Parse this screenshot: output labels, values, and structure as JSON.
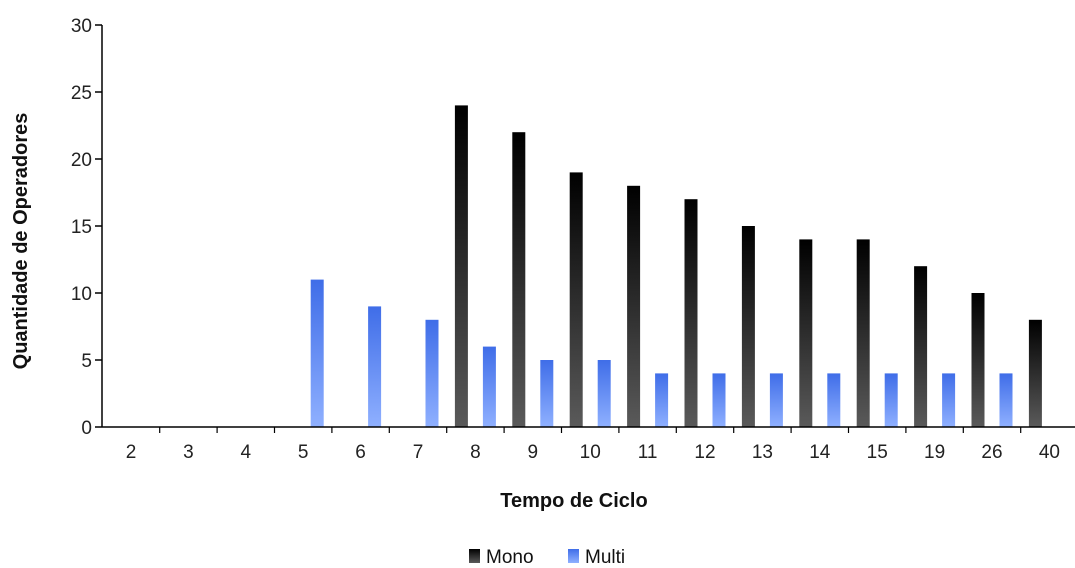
{
  "chart_data": {
    "type": "bar",
    "title": "",
    "xlabel": "Tempo de Ciclo",
    "ylabel": "Quantidade de Operadores",
    "categories": [
      "2",
      "3",
      "4",
      "5",
      "6",
      "7",
      "8",
      "9",
      "10",
      "11",
      "12",
      "13",
      "14",
      "15",
      "19",
      "26",
      "40"
    ],
    "ylim": [
      0,
      30
    ],
    "yticks": [
      "0",
      "5",
      "10",
      "15",
      "20",
      "25",
      "30"
    ],
    "grid": false,
    "legend_position": "bottom",
    "series": [
      {
        "name": "Mono",
        "color": "#111111",
        "values": [
          0,
          0,
          0,
          0,
          0,
          0,
          24,
          22,
          19,
          18,
          17,
          15,
          14,
          14,
          12,
          10,
          8
        ]
      },
      {
        "name": "Multi",
        "color": "#4a78f0",
        "values": [
          0,
          0,
          0,
          11,
          9,
          8,
          6,
          5,
          5,
          4,
          4,
          4,
          4,
          4,
          4,
          4,
          0
        ]
      }
    ]
  }
}
